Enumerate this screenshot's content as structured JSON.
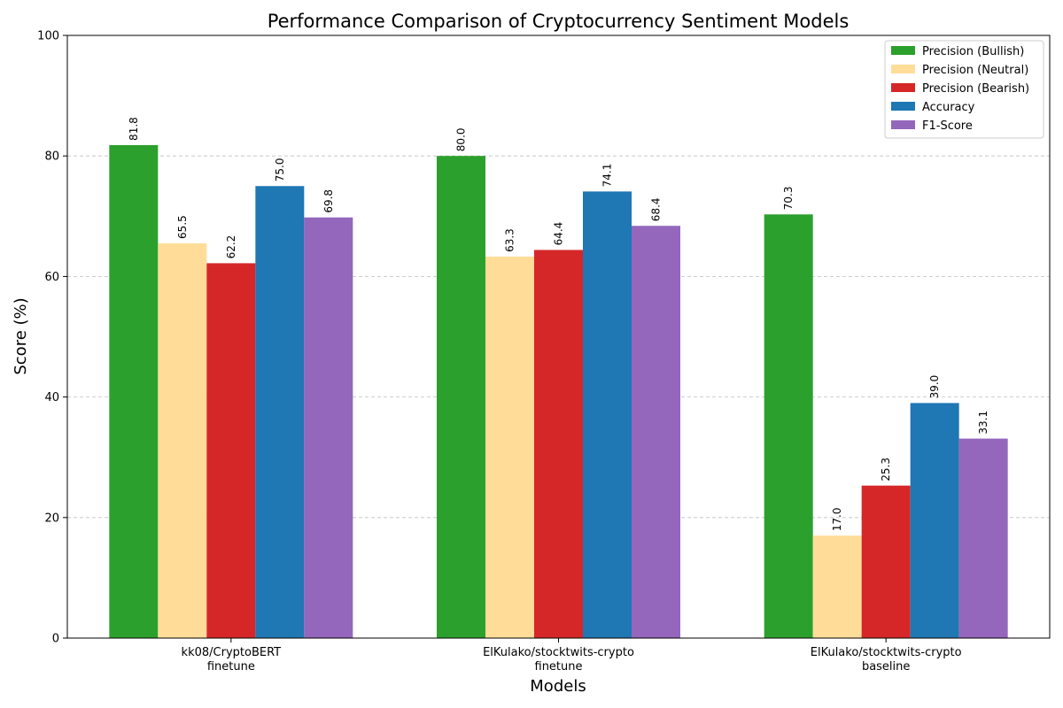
{
  "chart_data": {
    "type": "bar",
    "title": "Performance Comparison of Cryptocurrency Sentiment Models",
    "xlabel": "Models",
    "ylabel": "Score (%)",
    "ylim": [
      0,
      100
    ],
    "yticks": [
      0,
      20,
      40,
      60,
      80,
      100
    ],
    "grid": "y-dashed",
    "legend_position": "top-right",
    "categories": [
      [
        "kk08/CryptoBERT",
        "finetune"
      ],
      [
        "ElKulako/stocktwits-crypto",
        "finetune"
      ],
      [
        "ElKulako/stocktwits-crypto",
        "baseline"
      ]
    ],
    "series": [
      {
        "name": "Precision (Bullish)",
        "color": "#2ca02c",
        "values": [
          81.8,
          80.0,
          70.3
        ]
      },
      {
        "name": "Precision (Neutral)",
        "color": "#ffdd99",
        "values": [
          65.5,
          63.3,
          17.0
        ]
      },
      {
        "name": "Precision (Bearish)",
        "color": "#d62728",
        "values": [
          62.2,
          64.4,
          25.3
        ]
      },
      {
        "name": "Accuracy",
        "color": "#1f77b4",
        "values": [
          75.0,
          74.1,
          39.0
        ]
      },
      {
        "name": "F1-Score",
        "color": "#9467bd",
        "values": [
          69.8,
          68.4,
          33.1
        ]
      }
    ]
  }
}
